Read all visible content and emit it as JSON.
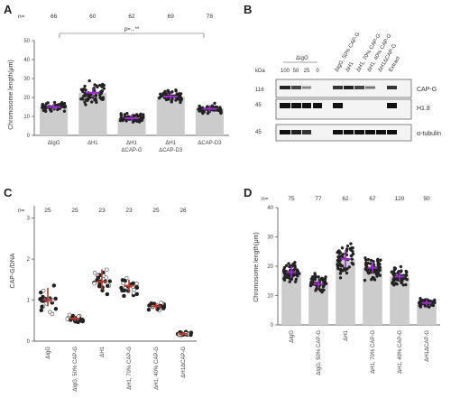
{
  "panels": {
    "a": {
      "letter": "A",
      "n_prefix": "n=",
      "n_values": [
        "66",
        "60",
        "62",
        "69",
        "78"
      ],
      "ylabel": "Chromosome length(μm)",
      "yticks": [
        "0",
        "10",
        "20",
        "30",
        "40",
        "50"
      ],
      "categories": [
        "ΔIgG",
        "ΔH1",
        "ΔH1 ΔCAP-G",
        "ΔH1 ΔCAP-D3",
        "ΔCAP-D3"
      ],
      "sig": "p=...**"
    },
    "b": {
      "letter": "B",
      "group_label": "ΔIgG",
      "titration": [
        "100",
        "50",
        "25",
        "0"
      ],
      "lane_labels": [
        "ΔIgG, 50% CAP-G",
        "ΔH1",
        "ΔH1, 70% CAP-G",
        "ΔH1, 40% CAP-G",
        "ΔH1ΔCAP-G",
        "Extract"
      ],
      "kda_label": "kDa",
      "mw": [
        "116",
        "45",
        "45"
      ],
      "bands": [
        "CAP-G",
        "H1.8",
        "α-tubulin"
      ]
    },
    "c": {
      "letter": "C",
      "n_prefix": "n=",
      "n_values": [
        "25",
        "25",
        "23",
        "23",
        "25",
        "26"
      ],
      "ylabel": "CAP-G/DNA",
      "yticks": [
        "0",
        "1",
        "2",
        "3"
      ],
      "categories": [
        "ΔIgG",
        "ΔIgG, 50% CAP-G",
        "ΔH1",
        "ΔH1, 70% CAP-G",
        "ΔH1, 40% CAP-G",
        "ΔH1ΔCAP-G"
      ]
    },
    "d": {
      "letter": "D",
      "n_prefix": "n=",
      "n_values": [
        "75",
        "77",
        "62",
        "67",
        "120",
        "50"
      ],
      "ylabel": "Chromosome length(μm)",
      "yticks": [
        "0",
        "10",
        "20",
        "30",
        "40"
      ],
      "categories": [
        "ΔIgG",
        "ΔIgG, 50% CAP-G",
        "ΔH1",
        "ΔH1, 70% CAP-G",
        "ΔH1, 40% CAP-G",
        "ΔH1ΔCAP-G"
      ]
    }
  },
  "chart_data": [
    {
      "type": "bar",
      "panel": "A",
      "ylabel": "Chromosome length(μm)",
      "ylim": [
        0,
        50
      ],
      "categories": [
        "ΔIgG",
        "ΔH1",
        "ΔH1 ΔCAP-G",
        "ΔH1 ΔCAP-D3",
        "ΔCAP-D3"
      ],
      "values": [
        15,
        22.5,
        9,
        20.5,
        14
      ],
      "ci_low": [
        13.5,
        20,
        7.5,
        18.5,
        12.5
      ],
      "ci_high": [
        16.5,
        25,
        11,
        22.5,
        16
      ],
      "spread": [
        4,
        9,
        4,
        5,
        4
      ],
      "n": [
        66,
        60,
        62,
        69,
        78
      ],
      "bar_color": "#cccccc",
      "point_color": "#222222",
      "mean_color": "#9b2fc9"
    },
    {
      "type": "scatter",
      "panel": "C",
      "ylabel": "CAP-G/DNA",
      "ylim": [
        0,
        3.3
      ],
      "categories": [
        "ΔIgG",
        "ΔIgG, 50% CAP-G",
        "ΔH1",
        "ΔH1, 70% CAP-G",
        "ΔH1, 40% CAP-G",
        "ΔH1ΔCAP-G"
      ],
      "values": [
        1.0,
        0.55,
        1.45,
        1.35,
        0.85,
        0.18
      ],
      "ci_low": [
        0.85,
        0.48,
        1.25,
        1.2,
        0.78,
        0.14
      ],
      "ci_high": [
        1.3,
        0.62,
        1.75,
        1.5,
        0.92,
        0.22
      ],
      "spread": [
        0.45,
        0.15,
        0.5,
        0.4,
        0.2,
        0.06
      ],
      "n": [
        25,
        25,
        23,
        23,
        25,
        26
      ],
      "point_color": "#222222",
      "median_color": "#c0392b"
    },
    {
      "type": "bar",
      "panel": "D",
      "ylabel": "Chromosome length(μm)",
      "ylim": [
        0,
        40
      ],
      "categories": [
        "ΔIgG",
        "ΔIgG, 50% CAP-G",
        "ΔH1",
        "ΔH1, 70% CAP-G",
        "ΔH1, 40% CAP-G",
        "ΔH1ΔCAP-G"
      ],
      "values": [
        18,
        14,
        22.5,
        19.5,
        16.5,
        7.5
      ],
      "ci_low": [
        16,
        12.5,
        19.5,
        17.5,
        15,
        6.5
      ],
      "ci_high": [
        20,
        15.5,
        25.5,
        21.5,
        18,
        8.5
      ],
      "spread": [
        6,
        5,
        8,
        6,
        5,
        2.5
      ],
      "n": [
        75,
        77,
        62,
        67,
        120,
        50
      ],
      "bar_color": "#cccccc",
      "point_color": "#222222",
      "mean_color": "#9b2fc9"
    }
  ]
}
